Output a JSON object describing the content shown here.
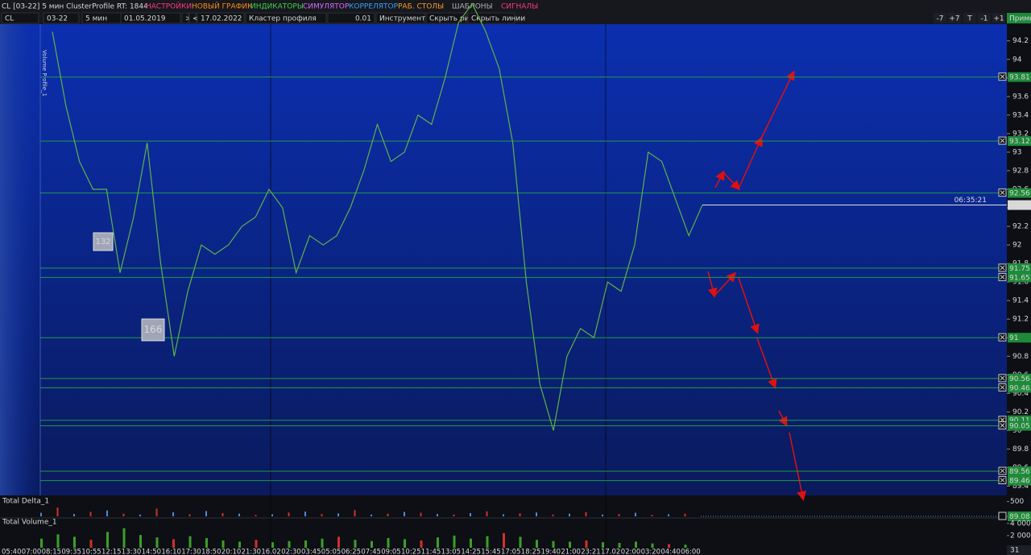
{
  "menu": {
    "title": "CL [03-22] 5 мин ClusterProfile RT: 1844",
    "items": [
      {
        "text": "НАСТРОЙКИ",
        "color": "#ff3b7a"
      },
      {
        "text": "НОВЫЙ ГРАФИК",
        "color": "#ff8a1e"
      },
      {
        "text": "ИНДИКАТОРЫ",
        "color": "#3fd14a"
      },
      {
        "text": "СИМУЛЯТОР",
        "color": "#d66bff"
      },
      {
        "text": "КОРРЕЛЯТОР",
        "color": "#3aa0ff"
      },
      {
        "text": "РАБ. СТОЛЫ",
        "color": "#ff9a2a"
      },
      {
        "text": "ШАБЛОНЫ",
        "color": "#b0b0b0"
      },
      {
        "text": "СИГНАЛЫ",
        "color": "#ff3b7a"
      }
    ]
  },
  "toolbar": {
    "fields": [
      "CL",
      "03-22",
      "5 мин",
      "01.05.2019",
      ">",
      "<",
      "17.02.2022",
      "Кластер профиля",
      "0.01",
      "Инструменты",
      "Скрыть рис.",
      "Скрыть линии"
    ],
    "right_buttons": [
      "-7",
      "+7",
      "T",
      "-1",
      "+1",
      "Примен"
    ]
  },
  "chart": {
    "indicator_label": "Volume Profile_1",
    "ylim": [
      89.3,
      94.38
    ],
    "yticks": [
      94.2,
      94,
      93.8,
      93.6,
      93.4,
      93.2,
      93,
      92.8,
      92.6,
      92.4,
      92.2,
      92,
      91.8,
      91.6,
      91.4,
      91.2,
      91,
      90.8,
      90.6,
      90.4,
      90.2,
      90,
      89.8,
      89.6,
      89.4
    ],
    "levels": [
      93.81,
      93.12,
      92.56,
      91.75,
      91.65,
      91,
      90.56,
      90.46,
      90.11,
      90.05,
      89.56,
      89.46
    ],
    "current_price": 92.43,
    "current_time": "06:35:21",
    "closes": [
      94.3,
      93.5,
      92.9,
      92.6,
      92.6,
      91.7,
      92.3,
      93.1,
      91.8,
      90.8,
      91.5,
      92.0,
      91.9,
      92.0,
      92.2,
      92.3,
      92.6,
      92.4,
      91.7,
      92.1,
      92.0,
      92.1,
      92.4,
      92.8,
      93.3,
      92.9,
      93.0,
      93.4,
      93.3,
      93.8,
      94.4,
      94.6,
      94.3,
      93.9,
      93.1,
      91.6,
      90.5,
      90.0,
      90.8,
      91.1,
      91.0,
      91.6,
      91.5,
      92.0,
      93.0,
      92.9,
      92.5,
      92.1,
      92.43
    ],
    "annotations": [
      "132",
      "166"
    ]
  },
  "delta_panel": {
    "title": "Total Delta_1",
    "ylim": [
      0,
      600
    ],
    "yticks": [
      500,
      0
    ],
    "values": [
      120,
      -300,
      80,
      -150,
      200,
      -90,
      60,
      -260,
      140,
      -70,
      180,
      -110,
      90,
      -50,
      70,
      -130,
      160,
      -80,
      100,
      -210,
      60,
      -90,
      150,
      -120,
      80,
      -60,
      110,
      -170,
      70,
      -100,
      130,
      -60,
      90,
      -140,
      60,
      -80,
      120,
      -50,
      70,
      -90
    ],
    "level_label": 89.08
  },
  "volume_panel": {
    "title": "Total Volume_1",
    "ylim": [
      0,
      4500
    ],
    "yticks": [
      {
        "value": 4000,
        "label": "4 000"
      },
      {
        "value": 2000,
        "label": "2 000"
      }
    ],
    "values": [
      1500,
      2200,
      1800,
      1300,
      2600,
      3200,
      2100,
      1700,
      1400,
      1900,
      1600,
      1200,
      1000,
      1300,
      900,
      1100,
      1200,
      1500,
      1800,
      1300,
      1100,
      1600,
      1400,
      1200,
      1700,
      2000,
      1500,
      1900,
      2400,
      1800,
      1300,
      1100,
      1000,
      1200,
      900,
      800,
      1000,
      700,
      600,
      500
    ],
    "corner_label": "31"
  },
  "time_axis": {
    "labels": [
      "05:40",
      "07:00",
      "08:15",
      "09:35",
      "10:55",
      "12:15",
      "13:30",
      "14:50",
      "16:10",
      "17:30",
      "18:50",
      "20:10",
      "21:30",
      "16.02",
      "02:30",
      "03:45",
      "05:05",
      "06:25",
      "07:45",
      "09:05",
      "10:25",
      "11:45",
      "13:05",
      "14:25",
      "15:45",
      "17:05",
      "18:25",
      "19:40",
      "21:00",
      "23:21",
      "17.02",
      "02:00",
      "03:20",
      "04:40",
      "06:00"
    ]
  }
}
